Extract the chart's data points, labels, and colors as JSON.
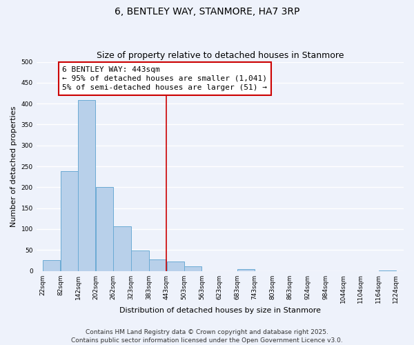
{
  "title": "6, BENTLEY WAY, STANMORE, HA7 3RP",
  "subtitle": "Size of property relative to detached houses in Stanmore",
  "xlabel": "Distribution of detached houses by size in Stanmore",
  "ylabel": "Number of detached properties",
  "bar_left_edges": [
    22,
    82,
    142,
    202,
    262,
    323,
    383,
    443,
    503,
    563,
    623,
    683,
    743,
    803,
    863,
    924,
    984,
    1044,
    1104,
    1164
  ],
  "bar_heights": [
    26,
    238,
    408,
    201,
    107,
    49,
    27,
    23,
    11,
    0,
    0,
    5,
    0,
    0,
    0,
    0,
    0,
    0,
    0,
    1
  ],
  "bin_width": 60,
  "bar_color": "#b8d0ea",
  "bar_edge_color": "#6aaad4",
  "vline_x": 443,
  "vline_color": "#cc0000",
  "annotation_title": "6 BENTLEY WAY: 443sqm",
  "annotation_line1": "← 95% of detached houses are smaller (1,041)",
  "annotation_line2": "5% of semi-detached houses are larger (51) →",
  "annotation_box_color": "#ffffff",
  "annotation_box_edge": "#cc0000",
  "ylim": [
    0,
    500
  ],
  "yticks": [
    0,
    50,
    100,
    150,
    200,
    250,
    300,
    350,
    400,
    450,
    500
  ],
  "xtick_labels": [
    "22sqm",
    "82sqm",
    "142sqm",
    "202sqm",
    "262sqm",
    "323sqm",
    "383sqm",
    "443sqm",
    "503sqm",
    "563sqm",
    "623sqm",
    "683sqm",
    "743sqm",
    "803sqm",
    "863sqm",
    "924sqm",
    "984sqm",
    "1044sqm",
    "1104sqm",
    "1164sqm",
    "1224sqm"
  ],
  "xtick_positions": [
    22,
    82,
    142,
    202,
    262,
    323,
    383,
    443,
    503,
    563,
    623,
    683,
    743,
    803,
    863,
    924,
    984,
    1044,
    1104,
    1164,
    1224
  ],
  "background_color": "#eef2fb",
  "grid_color": "#ffffff",
  "footer_line1": "Contains HM Land Registry data © Crown copyright and database right 2025.",
  "footer_line2": "Contains public sector information licensed under the Open Government Licence v3.0.",
  "title_fontsize": 10,
  "subtitle_fontsize": 9,
  "axis_label_fontsize": 8,
  "tick_fontsize": 6.5,
  "annotation_fontsize": 8,
  "footer_fontsize": 6.5
}
